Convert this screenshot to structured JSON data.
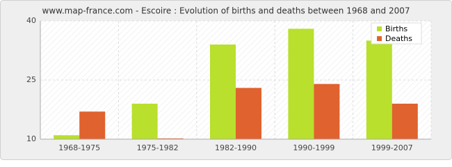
{
  "chart_data": {
    "type": "bar",
    "title": "www.map-france.com - Escoire : Evolution of births and deaths between 1968 and 2007",
    "categories": [
      "1968-1975",
      "1975-1982",
      "1982-1990",
      "1990-1999",
      "1999-2007"
    ],
    "series": [
      {
        "name": "Births",
        "color": "#b8e02c",
        "values": [
          11,
          19,
          34,
          38,
          35
        ]
      },
      {
        "name": "Deaths",
        "color": "#e0622e",
        "values": [
          17,
          10.2,
          23,
          24,
          19
        ]
      }
    ],
    "ylim": [
      10,
      40
    ],
    "yticks": [
      10,
      25,
      40
    ],
    "grid": true,
    "legend": "top-right"
  }
}
